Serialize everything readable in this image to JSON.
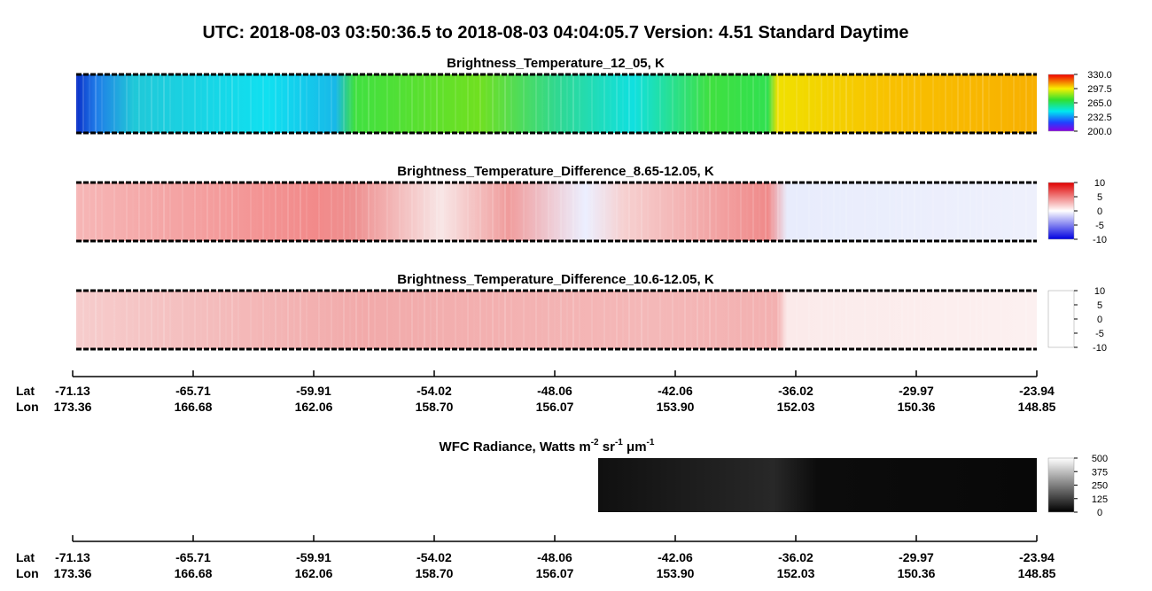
{
  "title": "UTC:  2018-08-03   03:50:36.5  to  2018-08-03   04:04:05.7    Version: 4.51  Standard Daytime",
  "panels": [
    {
      "title": "Brightness_Temperature_12_05, K",
      "colorbar_ticks": [
        "330.0",
        "297.5",
        "265.0",
        "232.5",
        "200.0"
      ]
    },
    {
      "title": "Brightness_Temperature_Difference_8.65-12.05, K",
      "colorbar_ticks": [
        "10",
        "5",
        "0",
        "-5",
        "-10"
      ]
    },
    {
      "title": "Brightness_Temperature_Difference_10.6-12.05, K",
      "colorbar_ticks": [
        "10",
        "5",
        "0",
        "-5",
        "-10"
      ]
    }
  ],
  "wfc": {
    "title_parts": [
      "WFC Radiance, Watts m",
      "-2",
      " sr",
      "-1",
      " μm",
      "-1"
    ],
    "colorbar_ticks": [
      "500",
      "375",
      "250",
      "125",
      "0"
    ]
  },
  "axis": {
    "lat_label": "Lat",
    "lon_label": "Lon",
    "lat": [
      "-71.13",
      "-65.71",
      "-59.91",
      "-54.02",
      "-48.06",
      "-42.06",
      "-36.02",
      "-29.97",
      "-23.94"
    ],
    "lon": [
      "173.36",
      "166.68",
      "162.06",
      "158.70",
      "156.07",
      "153.90",
      "152.03",
      "150.36",
      "148.85"
    ]
  }
}
